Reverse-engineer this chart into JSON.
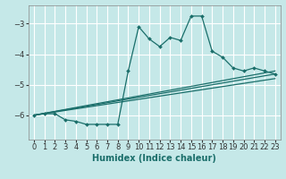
{
  "xlabel": "Humidex (Indice chaleur)",
  "bg_color": "#c5e8e8",
  "grid_color": "#ffffff",
  "line_color": "#1a6e6a",
  "xlim": [
    -0.5,
    23.5
  ],
  "ylim": [
    -6.8,
    -2.4
  ],
  "yticks": [
    -6,
    -5,
    -4,
    -3
  ],
  "xticks": [
    0,
    1,
    2,
    3,
    4,
    5,
    6,
    7,
    8,
    9,
    10,
    11,
    12,
    13,
    14,
    15,
    16,
    17,
    18,
    19,
    20,
    21,
    22,
    23
  ],
  "line1_x": [
    0,
    1,
    2,
    3,
    4,
    5,
    6,
    7,
    8,
    9,
    10,
    11,
    12,
    13,
    14,
    15,
    16,
    17,
    18,
    19,
    20,
    21,
    22,
    23
  ],
  "line1_y": [
    -6.0,
    -5.95,
    -5.95,
    -6.15,
    -6.2,
    -6.3,
    -6.3,
    -6.3,
    -6.3,
    -4.55,
    -3.1,
    -3.5,
    -3.75,
    -3.45,
    -3.55,
    -2.75,
    -2.75,
    -3.9,
    -4.1,
    -4.45,
    -4.55,
    -4.45,
    -4.55,
    -4.65
  ],
  "line2_x": [
    0,
    23
  ],
  "line2_y": [
    -6.0,
    -4.55
  ],
  "line3_x": [
    0,
    23
  ],
  "line3_y": [
    -6.0,
    -4.8
  ],
  "line4_x": [
    0,
    23
  ],
  "line4_y": [
    -6.0,
    -4.65
  ]
}
